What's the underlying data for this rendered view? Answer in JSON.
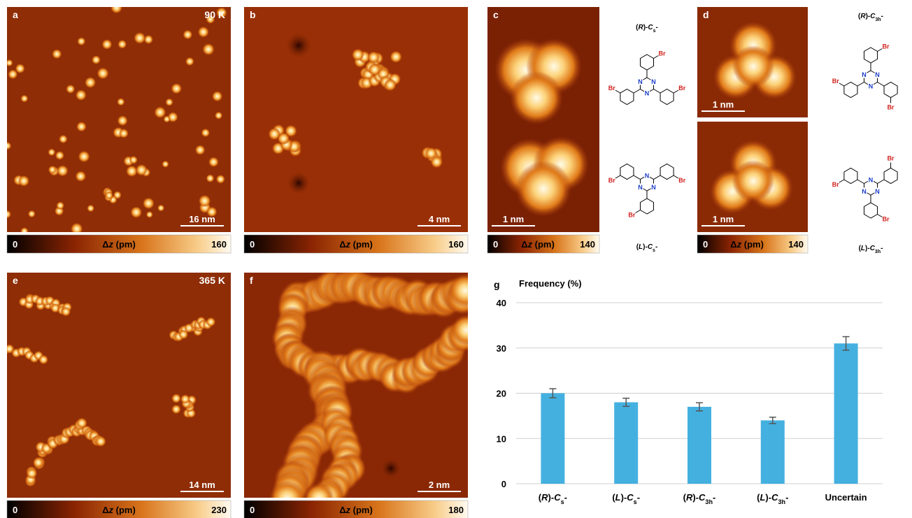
{
  "panels": [
    {
      "letter": "a",
      "label": "90 K",
      "scale_bars": [
        "16 nm"
      ],
      "colorbar": {
        "min": 0,
        "max": 160
      }
    },
    {
      "letter": "b",
      "scale_bars": [
        "4 nm"
      ],
      "colorbar": {
        "min": 0,
        "max": 160
      }
    },
    {
      "letter": "c",
      "scale_bars": [
        "1 nm"
      ],
      "colorbar": {
        "min": 0,
        "max": 140
      }
    },
    {
      "letter": "d",
      "scale_bars": [
        "1 nm",
        "1 nm"
      ],
      "colorbar": {
        "min": 0,
        "max": 140
      }
    },
    {
      "letter": "e",
      "label": "365 K",
      "scale_bars": [
        "14 nm"
      ],
      "colorbar": {
        "min": 0,
        "max": 230
      }
    },
    {
      "letter": "f",
      "scale_bars": [
        "2 nm"
      ],
      "colorbar": {
        "min": 0,
        "max": 180
      }
    }
  ],
  "colorbar_label": [
    "Δ",
    "z",
    " (pm)"
  ],
  "molecules": [
    {
      "label_parts": [
        "(",
        "R",
        ")-",
        "C",
        "s",
        "-"
      ]
    },
    {
      "label_parts": [
        "(",
        "L",
        ")-",
        "C",
        "s",
        "-"
      ]
    },
    {
      "label_parts": [
        "(",
        "R",
        ")-",
        "C",
        "3h",
        "-"
      ]
    },
    {
      "label_parts": [
        "(",
        "L",
        ")-",
        "C",
        "3h",
        "-"
      ]
    }
  ],
  "atoms": {
    "bromine": "Br",
    "nitrogen": "N"
  },
  "chart_data": {
    "type": "bar",
    "panel": "g",
    "title": "Frequency (%)",
    "categories": [
      [
        "(",
        "R",
        ")-",
        "C",
        "s",
        "-"
      ],
      [
        "(",
        "L",
        ")-",
        "C",
        "s",
        "-"
      ],
      [
        "(",
        "R",
        ")-",
        "C",
        "3h",
        "-"
      ],
      [
        "(",
        "L",
        ")-",
        "C",
        "3h",
        "-"
      ],
      [
        "Uncertain"
      ]
    ],
    "values": [
      20,
      18,
      17,
      14,
      31
    ],
    "errors": [
      1,
      0.9,
      0.9,
      0.7,
      1.5
    ],
    "color": "#44b0e0",
    "ylim": [
      0,
      40
    ],
    "yticks": [
      0,
      10,
      20,
      30,
      40
    ],
    "grid": true
  }
}
